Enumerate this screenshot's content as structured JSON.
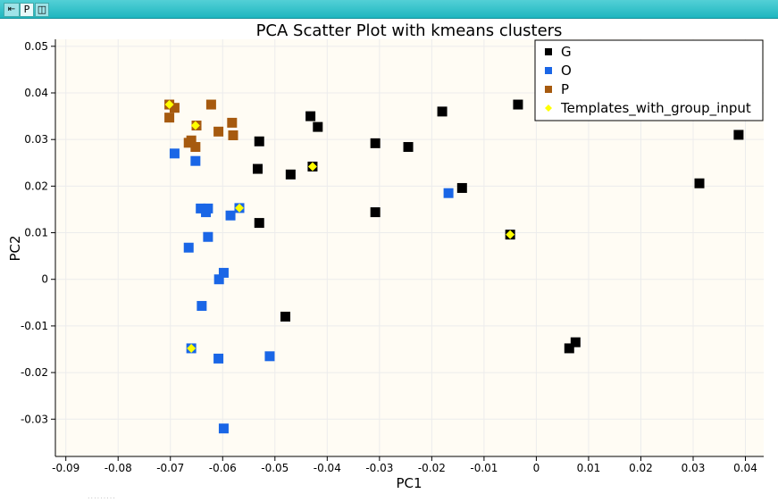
{
  "toolbar": {
    "back_icon": "left-arrow-icon",
    "p_label": "P",
    "split_icon": "split-view-icon"
  },
  "colors": {
    "plot_background": "#fffcf4",
    "G": "#000000",
    "O": "#1a66e6",
    "P": "#a65a0f",
    "Templates_with_group_input": "#ffff00"
  },
  "chart_data": {
    "type": "scatter",
    "title": "PCA Scatter Plot with kmeans clusters",
    "xlabel": "PC1",
    "ylabel": "PC2",
    "xlim": [
      -0.092,
      0.0435
    ],
    "ylim": [
      -0.038,
      0.0515
    ],
    "xticks": [
      -0.09,
      -0.08,
      -0.07,
      -0.06,
      -0.05,
      -0.04,
      -0.03,
      -0.02,
      -0.01,
      0,
      0.01,
      0.02,
      0.03,
      0.04
    ],
    "xtick_labels": [
      "-0.09",
      "-0.08",
      "-0.07",
      "-0.06",
      "-0.05",
      "-0.04",
      "-0.03",
      "-0.02",
      "-0.01",
      "0",
      "0.01",
      "0.02",
      "0.03",
      "0.04"
    ],
    "yticks": [
      -0.03,
      -0.02,
      -0.01,
      0,
      0.01,
      0.02,
      0.03,
      0.04,
      0.05
    ],
    "ytick_labels": [
      "-0.03",
      "-0.02",
      "-0.01",
      "0",
      "0.01",
      "0.02",
      "0.03",
      "0.04",
      "0.05"
    ],
    "grid": true,
    "legend_position": "top-right",
    "series": [
      {
        "name": "G",
        "marker": "square",
        "color": "#000000",
        "points": [
          [
            -0.0035,
            0.0375
          ],
          [
            -0.0432,
            0.035
          ],
          [
            -0.0418,
            0.0327
          ],
          [
            -0.018,
            0.036
          ],
          [
            -0.053,
            0.0296
          ],
          [
            -0.0308,
            0.0292
          ],
          [
            -0.0245,
            0.0284
          ],
          [
            0.0387,
            0.031
          ],
          [
            -0.0533,
            0.0237
          ],
          [
            -0.047,
            0.0225
          ],
          [
            -0.0428,
            0.0242
          ],
          [
            -0.0142,
            0.0196
          ],
          [
            0.0312,
            0.0206
          ],
          [
            -0.0308,
            0.0144
          ],
          [
            -0.053,
            0.0121
          ],
          [
            -0.005,
            0.0096
          ],
          [
            -0.048,
            -0.008
          ],
          [
            0.0075,
            -0.0135
          ],
          [
            0.0063,
            -0.0148
          ]
        ]
      },
      {
        "name": "O",
        "marker": "square",
        "color": "#1a66e6",
        "points": [
          [
            -0.0692,
            0.027
          ],
          [
            -0.0652,
            0.0254
          ],
          [
            -0.0642,
            0.0152
          ],
          [
            -0.0632,
            0.0144
          ],
          [
            -0.0628,
            0.0152
          ],
          [
            -0.0568,
            0.0153
          ],
          [
            -0.0585,
            0.0137
          ],
          [
            -0.0168,
            0.0185
          ],
          [
            -0.0628,
            0.0091
          ],
          [
            -0.0665,
            0.0068
          ],
          [
            -0.0598,
            0.0014
          ],
          [
            -0.0607,
            0.0
          ],
          [
            -0.064,
            -0.0057
          ],
          [
            -0.066,
            -0.0148
          ],
          [
            -0.0608,
            -0.017
          ],
          [
            -0.051,
            -0.0165
          ],
          [
            -0.0598,
            -0.032
          ]
        ]
      },
      {
        "name": "P",
        "marker": "square",
        "color": "#a65a0f",
        "points": [
          [
            -0.0702,
            0.0375
          ],
          [
            -0.0692,
            0.0368
          ],
          [
            -0.0702,
            0.0347
          ],
          [
            -0.0622,
            0.0375
          ],
          [
            -0.065,
            0.033
          ],
          [
            -0.0582,
            0.0336
          ],
          [
            -0.0608,
            0.0317
          ],
          [
            -0.058,
            0.0309
          ],
          [
            -0.0665,
            0.0293
          ],
          [
            -0.066,
            0.0298
          ],
          [
            -0.0652,
            0.0284
          ]
        ]
      },
      {
        "name": "Templates_with_group_input",
        "marker": "diamond",
        "color": "#ffff00",
        "points": [
          [
            -0.0702,
            0.0375
          ],
          [
            -0.0652,
            0.033
          ],
          [
            -0.0428,
            0.0242
          ],
          [
            -0.0568,
            0.0153
          ],
          [
            -0.005,
            0.0096
          ],
          [
            -0.066,
            -0.0148
          ]
        ]
      }
    ]
  }
}
